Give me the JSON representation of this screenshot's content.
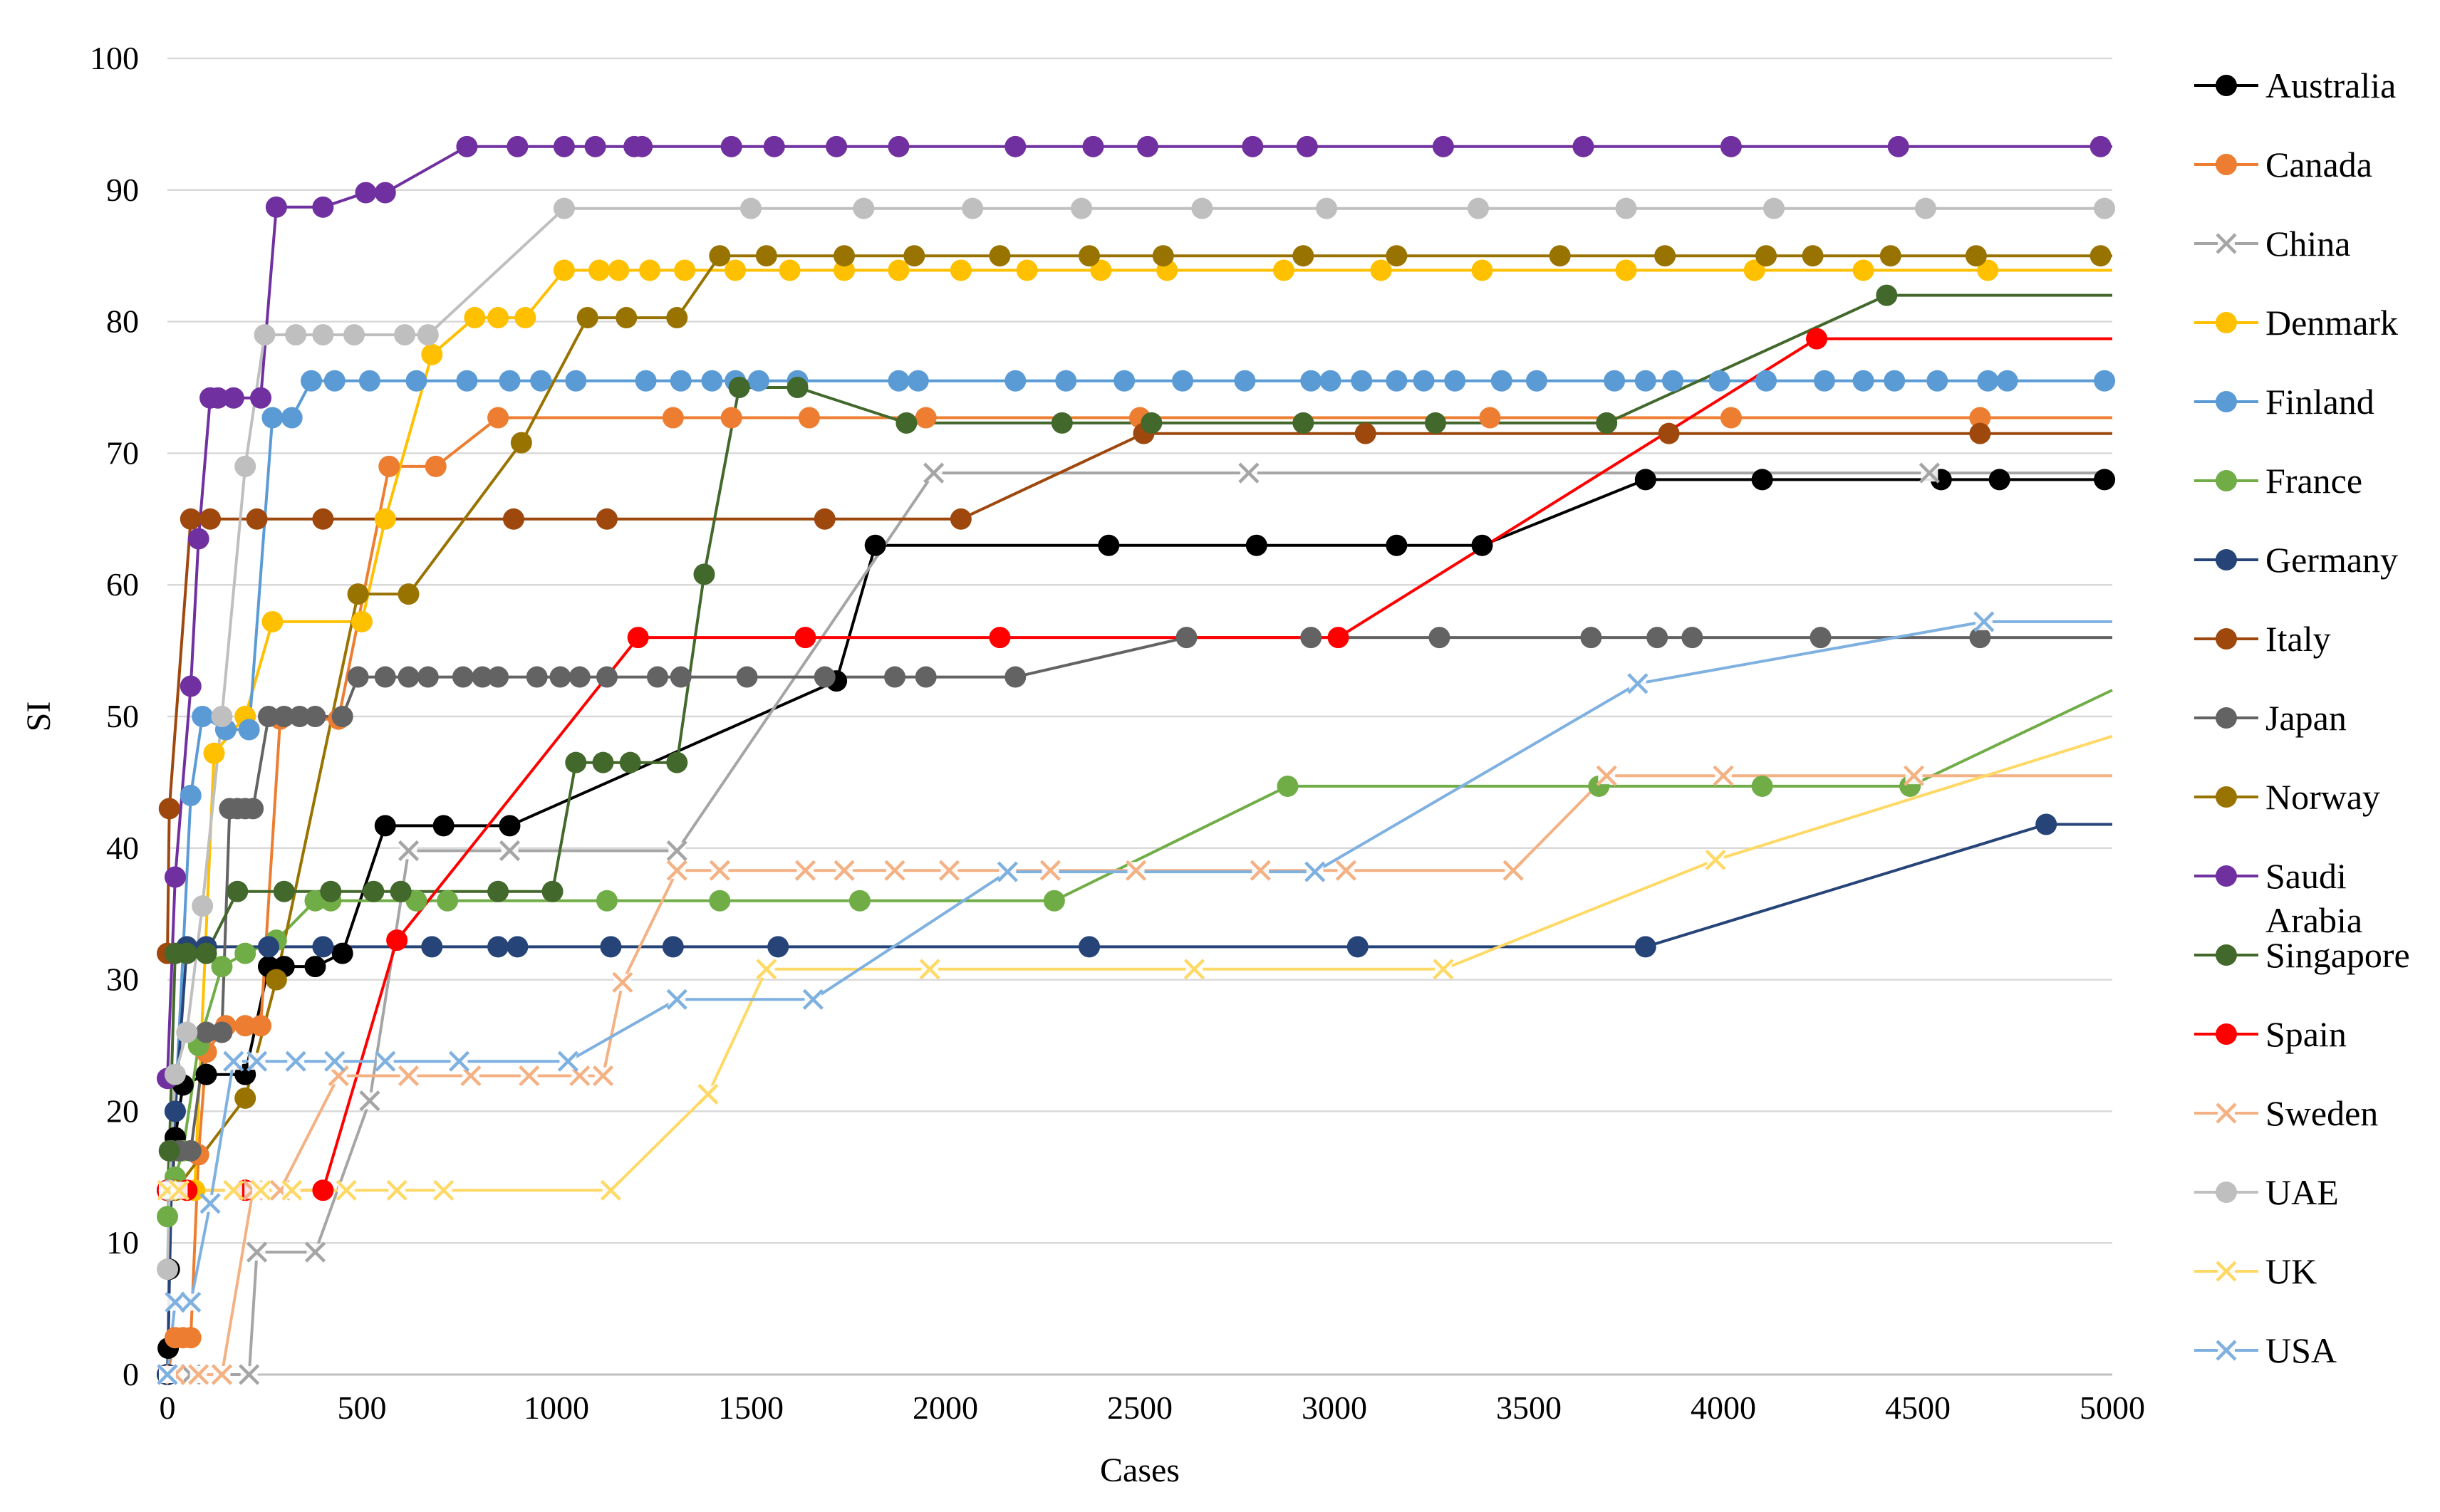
{
  "chart_data": {
    "type": "line",
    "title": "",
    "xlabel": "Cases",
    "ylabel": "SI",
    "xlim": [
      0,
      5000
    ],
    "ylim": [
      0,
      100
    ],
    "xticks": [
      0,
      500,
      1000,
      1500,
      2000,
      2500,
      3000,
      3500,
      4000,
      4500,
      5000
    ],
    "yticks": [
      0,
      10,
      20,
      30,
      40,
      50,
      60,
      70,
      80,
      90,
      100
    ],
    "xtick_labels": [
      "0",
      "500",
      "1000",
      "1500",
      "2000",
      "2500",
      "3000",
      "3500",
      "4000",
      "4500",
      "5000"
    ],
    "ytick_labels": [
      "0",
      "10",
      "20",
      "30",
      "40",
      "50",
      "60",
      "70",
      "80",
      "90",
      "100"
    ],
    "grid": true,
    "legend_position": "right",
    "series": [
      {
        "name": "Australia",
        "color": "#000000",
        "marker": "dot",
        "x": [
          0,
          2,
          5,
          10,
          20,
          40,
          100,
          200,
          260,
          300,
          380,
          450,
          560,
          710,
          880,
          1720,
          1820,
          2420,
          2800,
          3160,
          3380,
          3800,
          4100,
          4560,
          4710,
          4980,
          5000
        ],
        "y": [
          0,
          2,
          8,
          14,
          18,
          22,
          22.8,
          22.8,
          31,
          31,
          31,
          32,
          41.7,
          41.7,
          41.7,
          52.7,
          63,
          63,
          63,
          63,
          63,
          68,
          68,
          68,
          68,
          68,
          68
        ]
      },
      {
        "name": "Canada",
        "color": "#ED7D31",
        "marker": "dot",
        "x": [
          0,
          20,
          40,
          60,
          80,
          100,
          150,
          200,
          240,
          290,
          440,
          570,
          690,
          850,
          1300,
          1450,
          1650,
          1950,
          2500,
          3400,
          4020,
          4660,
          5000
        ],
        "y": [
          0,
          2.8,
          2.8,
          2.8,
          16.7,
          24.5,
          26.5,
          26.5,
          26.5,
          49.8,
          49.8,
          69,
          69,
          72.7,
          72.7,
          72.7,
          72.7,
          72.7,
          72.7,
          72.7,
          72.7,
          72.7,
          72.7
        ]
      },
      {
        "name": "China",
        "color": "#A5A5A5",
        "marker": "x",
        "x": [
          0,
          60,
          140,
          210,
          230,
          380,
          520,
          620,
          880,
          1310,
          1970,
          2780,
          4530,
          5000
        ],
        "y": [
          0,
          0,
          0,
          0,
          9.3,
          9.3,
          20.8,
          39.8,
          39.8,
          39.8,
          68.5,
          68.5,
          68.5,
          68.5
        ]
      },
      {
        "name": "Denmark",
        "color": "#FFC000",
        "marker": "dot",
        "x": [
          0,
          20,
          50,
          70,
          120,
          200,
          270,
          500,
          560,
          680,
          790,
          850,
          920,
          1020,
          1110,
          1160,
          1240,
          1330,
          1460,
          1600,
          1740,
          1880,
          2040,
          2210,
          2400,
          2570,
          2870,
          3120,
          3380,
          3750,
          4080,
          4360,
          4680,
          5000
        ],
        "y": [
          14,
          14,
          14,
          14,
          47.2,
          50,
          57.2,
          57.2,
          65,
          77.5,
          80.3,
          80.3,
          80.3,
          83.9,
          83.9,
          83.9,
          83.9,
          83.9,
          83.9,
          83.9,
          83.9,
          83.9,
          83.9,
          83.9,
          83.9,
          83.9,
          83.9,
          83.9,
          83.9,
          83.9,
          83.9,
          83.9,
          83.9,
          83.9
        ]
      },
      {
        "name": "Finland",
        "color": "#5B9BD5",
        "marker": "dot",
        "x": [
          0,
          20,
          60,
          90,
          150,
          210,
          270,
          320,
          370,
          430,
          520,
          640,
          770,
          880,
          960,
          1050,
          1230,
          1320,
          1400,
          1460,
          1520,
          1620,
          1880,
          1930,
          2180,
          2310,
          2460,
          2610,
          2770,
          2940,
          2990,
          3070,
          3160,
          3230,
          3310,
          3430,
          3520,
          3720,
          3800,
          3870,
          3990,
          4110,
          4260,
          4360,
          4440,
          4550,
          4680,
          4730,
          4980,
          5000
        ],
        "y": [
          14,
          20,
          44,
          50,
          49,
          49,
          72.7,
          72.7,
          75.5,
          75.5,
          75.5,
          75.5,
          75.5,
          75.5,
          75.5,
          75.5,
          75.5,
          75.5,
          75.5,
          75.5,
          75.5,
          75.5,
          75.5,
          75.5,
          75.5,
          75.5,
          75.5,
          75.5,
          75.5,
          75.5,
          75.5,
          75.5,
          75.5,
          75.5,
          75.5,
          75.5,
          75.5,
          75.5,
          75.5,
          75.5,
          75.5,
          75.5,
          75.5,
          75.5,
          75.5,
          75.5,
          75.5,
          75.5,
          75.5,
          75.5
        ]
      },
      {
        "name": "France",
        "color": "#70AD47",
        "marker": "dot",
        "x": [
          0,
          5,
          20,
          40,
          80,
          140,
          200,
          280,
          380,
          420,
          640,
          720,
          1130,
          1420,
          1780,
          2280,
          2880,
          3680,
          4100,
          4480,
          5000
        ],
        "y": [
          12,
          14,
          15,
          17,
          25,
          31,
          32,
          33,
          36,
          36,
          36,
          36,
          36,
          36,
          36,
          36,
          44.7,
          44.7,
          44.7,
          44.7,
          52
        ]
      },
      {
        "name": "Germany",
        "color": "#264478",
        "marker": "dot",
        "x": [
          0,
          10,
          20,
          50,
          100,
          260,
          400,
          680,
          850,
          900,
          1140,
          1300,
          1570,
          2370,
          3060,
          3800,
          4830,
          5000
        ],
        "y": [
          0,
          14,
          20,
          32.5,
          32.5,
          32.5,
          32.5,
          32.5,
          32.5,
          32.5,
          32.5,
          32.5,
          32.5,
          32.5,
          32.5,
          32.5,
          41.8,
          41.8
        ]
      },
      {
        "name": "Italy",
        "color": "#9E480E",
        "marker": "dot",
        "x": [
          0,
          5,
          60,
          110,
          230,
          400,
          890,
          1130,
          1690,
          2040,
          2510,
          3080,
          3860,
          4660,
          5000
        ],
        "y": [
          32,
          43,
          65,
          65,
          65,
          65,
          65,
          65,
          65,
          65,
          71.5,
          71.5,
          71.5,
          71.5,
          71.5
        ]
      },
      {
        "name": "Japan",
        "color": "#636363",
        "marker": "dot",
        "x": [
          0,
          10,
          30,
          60,
          100,
          140,
          160,
          180,
          200,
          220,
          260,
          300,
          340,
          380,
          450,
          490,
          560,
          620,
          670,
          760,
          810,
          850,
          950,
          1010,
          1060,
          1130,
          1260,
          1320,
          1490,
          1690,
          1870,
          1950,
          2180,
          2620,
          2940,
          3270,
          3660,
          3830,
          3920,
          4250,
          4660,
          5000
        ],
        "y": [
          14,
          17,
          17,
          17,
          26,
          26,
          43,
          43,
          43,
          43,
          50,
          50,
          50,
          50,
          50,
          53,
          53,
          53,
          53,
          53,
          53,
          53,
          53,
          53,
          53,
          53,
          53,
          53,
          53,
          53,
          53,
          53,
          53,
          56,
          56,
          56,
          56,
          56,
          56,
          56,
          56,
          56
        ]
      },
      {
        "name": "Norway",
        "color": "#997300",
        "marker": "dot",
        "x": [
          0,
          20,
          200,
          280,
          490,
          620,
          910,
          1080,
          1180,
          1310,
          1420,
          1540,
          1740,
          1920,
          2140,
          2370,
          2560,
          2920,
          3160,
          3580,
          3850,
          4110,
          4230,
          4430,
          4650,
          4970,
          5000
        ],
        "y": [
          14,
          14,
          21,
          30,
          59.3,
          59.3,
          70.8,
          80.3,
          80.3,
          80.3,
          85,
          85,
          85,
          85,
          85,
          85,
          85,
          85,
          85,
          85,
          85,
          85,
          85,
          85,
          85,
          85,
          85
        ]
      },
      {
        "name": "Saudi Arabia",
        "color": "#7030A0",
        "marker": "dot",
        "x": [
          0,
          20,
          60,
          80,
          110,
          130,
          170,
          240,
          280,
          400,
          510,
          560,
          770,
          900,
          1020,
          1100,
          1200,
          1220,
          1450,
          1560,
          1720,
          1880,
          2180,
          2380,
          2520,
          2790,
          2930,
          3280,
          3640,
          4020,
          4450,
          4970,
          5000
        ],
        "y": [
          22.5,
          37.8,
          52.3,
          63.5,
          74.2,
          74.2,
          74.2,
          74.2,
          88.7,
          88.7,
          89.8,
          89.8,
          93.3,
          93.3,
          93.3,
          93.3,
          93.3,
          93.3,
          93.3,
          93.3,
          93.3,
          93.3,
          93.3,
          93.3,
          93.3,
          93.3,
          93.3,
          93.3,
          93.3,
          93.3,
          93.3,
          93.3,
          93.3
        ]
      },
      {
        "name": "Singapore",
        "color": "#43682B",
        "marker": "dot",
        "x": [
          0,
          5,
          20,
          50,
          100,
          180,
          300,
          420,
          530,
          600,
          850,
          990,
          1050,
          1120,
          1190,
          1310,
          1380,
          1470,
          1620,
          1900,
          2300,
          2530,
          2920,
          3260,
          3700,
          4420,
          5000
        ],
        "y": [
          14,
          17,
          32,
          32,
          32,
          36.7,
          36.7,
          36.7,
          36.7,
          36.7,
          36.7,
          36.7,
          46.5,
          46.5,
          46.5,
          46.5,
          60.8,
          75,
          75,
          72.3,
          72.3,
          72.3,
          72.3,
          72.3,
          72.3,
          82,
          82
        ]
      },
      {
        "name": "Spain",
        "color": "#FF0000",
        "marker": "dot",
        "x": [
          0,
          50,
          200,
          400,
          590,
          1210,
          1640,
          2140,
          3010,
          4240,
          5000
        ],
        "y": [
          14,
          14,
          14,
          14,
          33,
          56,
          56,
          56,
          56,
          78.7,
          78.7
        ]
      },
      {
        "name": "Sweden",
        "color": "#F4B183",
        "marker": "x",
        "x": [
          0,
          20,
          80,
          140,
          220,
          290,
          440,
          620,
          780,
          930,
          1060,
          1120,
          1170,
          1310,
          1420,
          1640,
          1740,
          1870,
          2010,
          2270,
          2490,
          2810,
          3030,
          3460,
          3700,
          4000,
          4490,
          5000
        ],
        "y": [
          0,
          0,
          0,
          0,
          14,
          14,
          22.7,
          22.7,
          22.7,
          22.7,
          22.7,
          22.7,
          29.8,
          38.3,
          38.3,
          38.3,
          38.3,
          38.3,
          38.3,
          38.3,
          38.3,
          38.3,
          38.3,
          38.3,
          45.5,
          45.5,
          45.5,
          45.5
        ]
      },
      {
        "name": "UAE",
        "color": "#BFBFBF",
        "marker": "dot",
        "x": [
          0,
          5,
          20,
          50,
          90,
          140,
          200,
          250,
          330,
          400,
          480,
          610,
          670,
          1020,
          1500,
          1790,
          2070,
          2350,
          2660,
          2980,
          3370,
          3750,
          4130,
          4520,
          4980,
          5000
        ],
        "y": [
          8,
          14,
          22.8,
          26,
          35.6,
          50,
          69,
          79,
          79,
          79,
          79,
          79,
          79,
          88.6,
          88.6,
          88.6,
          88.6,
          88.6,
          88.6,
          88.6,
          88.6,
          88.6,
          88.6,
          88.6,
          88.6,
          88.6
        ]
      },
      {
        "name": "UK",
        "color": "#FFD966",
        "marker": "x",
        "x": [
          0,
          30,
          170,
          240,
          320,
          460,
          590,
          710,
          1140,
          1390,
          1540,
          1960,
          2640,
          3280,
          3980,
          5000
        ],
        "y": [
          14,
          14,
          14,
          14,
          14,
          14,
          14,
          14,
          14,
          21.3,
          30.8,
          30.8,
          30.8,
          30.8,
          39.1,
          48.5
        ]
      },
      {
        "name": "USA",
        "color": "#7EB0E0",
        "marker": "x",
        "x": [
          0,
          20,
          60,
          110,
          170,
          230,
          330,
          430,
          560,
          750,
          1030,
          1310,
          1660,
          2160,
          2950,
          3780,
          4670,
          5000
        ],
        "y": [
          0,
          5.5,
          5.5,
          13,
          23.8,
          23.8,
          23.8,
          23.8,
          23.8,
          23.8,
          23.8,
          28.5,
          28.5,
          38.2,
          38.2,
          52.5,
          57.2,
          57.2
        ]
      }
    ]
  }
}
